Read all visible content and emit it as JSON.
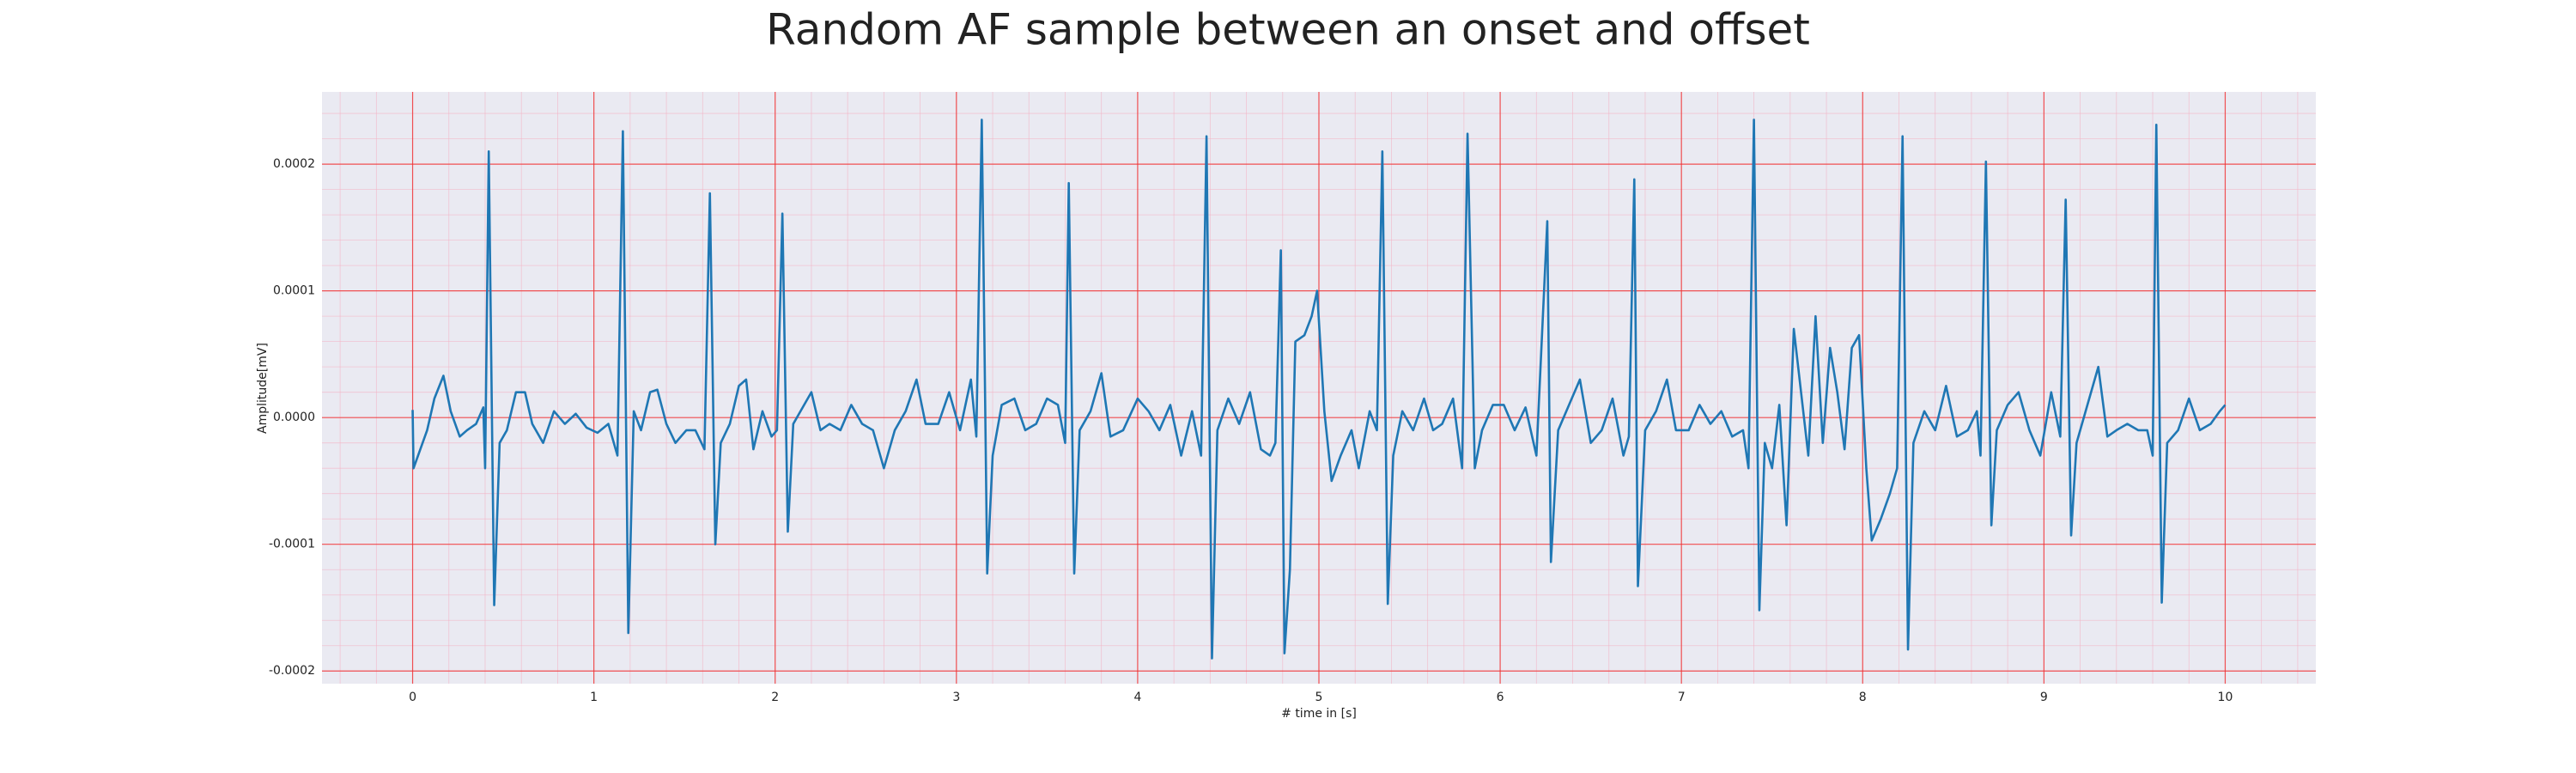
{
  "chart_data": {
    "type": "line",
    "title": "Random AF sample between an onset and offset",
    "xlabel": "# time in [s]",
    "ylabel": "Amplitude[mV]",
    "color": "#1f77b4",
    "grid": true,
    "minor_grid": true,
    "xlim": [
      -0.5,
      10.5
    ],
    "ylim": [
      -0.00021,
      0.000257
    ],
    "xticks": [
      0,
      1,
      2,
      3,
      4,
      5,
      6,
      7,
      8,
      9,
      10
    ],
    "yticks": [
      {
        "value": -0.0002,
        "label": "-0.0002"
      },
      {
        "value": -0.0001,
        "label": "-0.0001"
      },
      {
        "value": 0,
        "label": "0.0000"
      },
      {
        "value": 0.0001,
        "label": "0.0001"
      },
      {
        "value": 0.0002,
        "label": "0.0002"
      }
    ],
    "x": [
      0.0,
      0.005,
      0.03,
      0.08,
      0.12,
      0.17,
      0.21,
      0.26,
      0.3,
      0.35,
      0.39,
      0.4,
      0.42,
      0.45,
      0.48,
      0.52,
      0.57,
      0.62,
      0.66,
      0.72,
      0.78,
      0.84,
      0.9,
      0.96,
      1.02,
      1.08,
      1.13,
      1.16,
      1.19,
      1.22,
      1.26,
      1.31,
      1.35,
      1.4,
      1.45,
      1.51,
      1.56,
      1.61,
      1.64,
      1.67,
      1.7,
      1.75,
      1.8,
      1.84,
      1.88,
      1.93,
      1.98,
      2.01,
      2.04,
      2.07,
      2.1,
      2.14,
      2.2,
      2.25,
      2.3,
      2.36,
      2.42,
      2.48,
      2.54,
      2.6,
      2.66,
      2.72,
      2.78,
      2.83,
      2.9,
      2.96,
      3.02,
      3.08,
      3.11,
      3.14,
      3.17,
      3.2,
      3.25,
      3.32,
      3.38,
      3.44,
      3.5,
      3.56,
      3.6,
      3.62,
      3.65,
      3.68,
      3.74,
      3.8,
      3.85,
      3.92,
      4.0,
      4.06,
      4.12,
      4.18,
      4.24,
      4.3,
      4.35,
      4.38,
      4.41,
      4.44,
      4.5,
      4.56,
      4.62,
      4.68,
      4.73,
      4.76,
      4.79,
      4.81,
      4.84,
      4.87,
      4.92,
      4.96,
      4.99,
      5.03,
      5.07,
      5.12,
      5.18,
      5.22,
      5.28,
      5.32,
      5.35,
      5.38,
      5.41,
      5.46,
      5.52,
      5.58,
      5.63,
      5.68,
      5.74,
      5.79,
      5.82,
      5.86,
      5.9,
      5.96,
      6.02,
      6.08,
      6.14,
      6.2,
      6.26,
      6.28,
      6.32,
      6.38,
      6.44,
      6.5,
      6.56,
      6.62,
      6.68,
      6.71,
      6.74,
      6.76,
      6.8,
      6.86,
      6.92,
      6.97,
      7.04,
      7.1,
      7.16,
      7.22,
      7.28,
      7.34,
      7.37,
      7.4,
      7.43,
      7.46,
      7.5,
      7.54,
      7.58,
      7.62,
      7.66,
      7.7,
      7.74,
      7.78,
      7.82,
      7.86,
      7.9,
      7.94,
      7.98,
      8.02,
      8.05,
      8.1,
      8.15,
      8.19,
      8.22,
      8.25,
      8.28,
      8.34,
      8.4,
      8.46,
      8.52,
      8.58,
      8.63,
      8.65,
      8.68,
      8.71,
      8.74,
      8.8,
      8.86,
      8.92,
      8.98,
      9.04,
      9.09,
      9.12,
      9.15,
      9.18,
      9.24,
      9.3,
      9.35,
      9.4,
      9.46,
      9.52,
      9.57,
      9.6,
      9.62,
      9.65,
      9.68,
      9.74,
      9.8,
      9.86,
      9.92,
      9.97,
      10.0
    ],
    "values": [
      6e-06,
      -4e-05,
      -3e-05,
      -1e-05,
      1.5e-05,
      3.3e-05,
      5e-06,
      -1.5e-05,
      -1e-05,
      -5e-06,
      8e-06,
      -4e-05,
      0.00021,
      -0.000148,
      -2e-05,
      -1e-05,
      2e-05,
      2e-05,
      -5e-06,
      -2e-05,
      5e-06,
      -5e-06,
      3e-06,
      -8e-06,
      -1.2e-05,
      -5e-06,
      -3e-05,
      0.000226,
      -0.00017,
      5e-06,
      -1e-05,
      2e-05,
      2.2e-05,
      -5e-06,
      -2e-05,
      -1e-05,
      -1e-05,
      -2.5e-05,
      0.000177,
      -0.0001,
      -2e-05,
      -5e-06,
      2.5e-05,
      3e-05,
      -2.5e-05,
      5e-06,
      -1.5e-05,
      -1e-05,
      0.000161,
      -9e-05,
      -5e-06,
      5e-06,
      2e-05,
      -1e-05,
      -5e-06,
      -1e-05,
      1e-05,
      -5e-06,
      -1e-05,
      -4e-05,
      -1e-05,
      5e-06,
      3e-05,
      -5e-06,
      -5e-06,
      2e-05,
      -1e-05,
      3e-05,
      -1.5e-05,
      0.000235,
      -0.000123,
      -3e-05,
      1e-05,
      1.5e-05,
      -1e-05,
      -5e-06,
      1.5e-05,
      1e-05,
      -2e-05,
      0.000185,
      -0.000123,
      -1e-05,
      5e-06,
      3.5e-05,
      -1.5e-05,
      -1e-05,
      1.5e-05,
      5e-06,
      -1e-05,
      1e-05,
      -3e-05,
      5e-06,
      -3e-05,
      0.000222,
      -0.00019,
      -1e-05,
      1.5e-05,
      -5e-06,
      2e-05,
      -2.5e-05,
      -3e-05,
      -2e-05,
      0.000132,
      -0.000186,
      -0.00012,
      6e-05,
      6.5e-05,
      8e-05,
      0.0001,
      5e-06,
      -5e-05,
      -3e-05,
      -1e-05,
      -4e-05,
      5e-06,
      -1e-05,
      0.00021,
      -0.000147,
      -3e-05,
      5e-06,
      -1e-05,
      1.5e-05,
      -1e-05,
      -5e-06,
      1.5e-05,
      -4e-05,
      0.000224,
      -4e-05,
      -1e-05,
      1e-05,
      1e-05,
      -1e-05,
      8e-06,
      -3e-05,
      0.000155,
      -0.000114,
      -1e-05,
      1e-05,
      3e-05,
      -2e-05,
      -1e-05,
      1.5e-05,
      -3e-05,
      -1.5e-05,
      0.000188,
      -0.000133,
      -1e-05,
      5e-06,
      3e-05,
      -1e-05,
      -1e-05,
      1e-05,
      -5e-06,
      5e-06,
      -1.5e-05,
      -1e-05,
      -4e-05,
      0.000235,
      -0.000152,
      -2e-05,
      -4e-05,
      1e-05,
      -8.5e-05,
      7e-05,
      2e-05,
      -3e-05,
      8e-05,
      -2e-05,
      5.5e-05,
      2e-05,
      -2.5e-05,
      5.5e-05,
      6.5e-05,
      -4e-05,
      -9.7e-05,
      -8e-05,
      -6e-05,
      -4e-05,
      0.000222,
      -0.000183,
      -2e-05,
      5e-06,
      -1e-05,
      2.5e-05,
      -1.5e-05,
      -1e-05,
      5e-06,
      -3e-05,
      0.000202,
      -8.5e-05,
      -1e-05,
      1e-05,
      2e-05,
      -1e-05,
      -3e-05,
      2e-05,
      -1.5e-05,
      0.000172,
      -9.3e-05,
      -2e-05,
      1e-05,
      4e-05,
      -1.5e-05,
      -1e-05,
      -5e-06,
      -1e-05,
      -1e-05,
      -3e-05,
      0.000231,
      -0.000146,
      -2e-05,
      -1e-05,
      1.5e-05,
      -1e-05,
      -5e-06,
      5e-06,
      1e-05
    ]
  }
}
